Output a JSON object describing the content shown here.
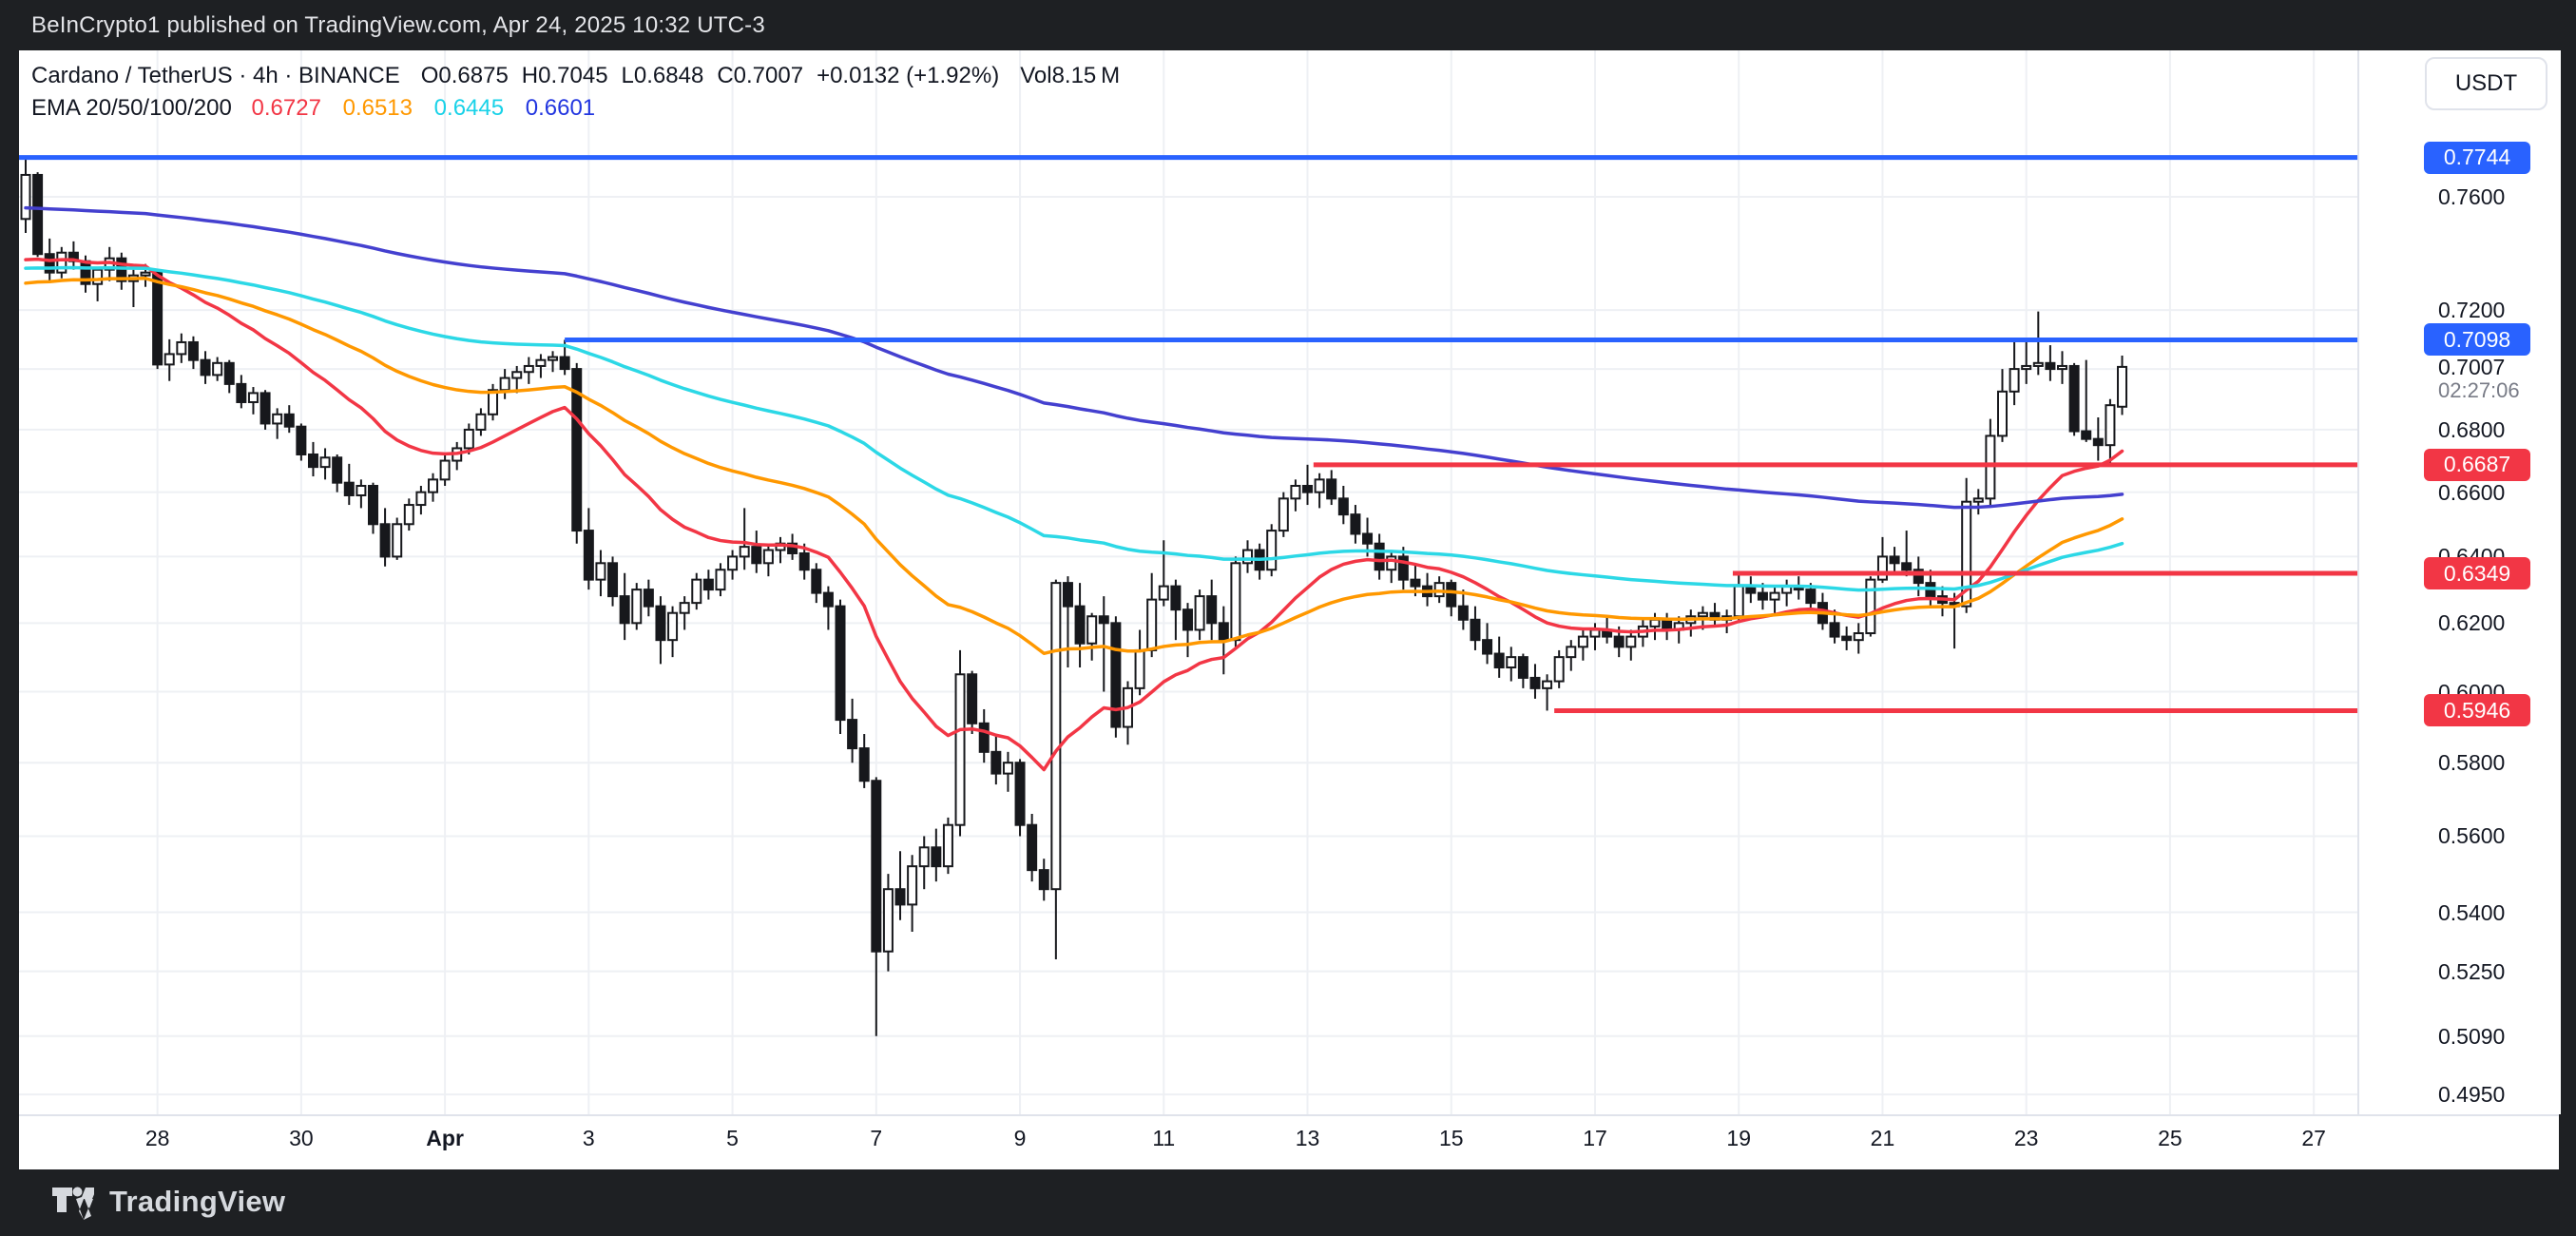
{
  "top_bar": {
    "text": "BeInCrypto1 published on TradingView.com, Apr 24, 2025 10:32 UTC-3"
  },
  "footer": {
    "brand": "TradingView"
  },
  "header": {
    "symbol": "Cardano / TetherUS · 4h · BINANCE",
    "open": "O0.6875",
    "high": "H0.7045",
    "low": "L0.6848",
    "close": "C0.7007",
    "change": "+0.0132 (+1.92%)",
    "volume": "Vol8.15 M",
    "ema_label": "EMA 20/50/100/200"
  },
  "price_axis": {
    "currency_button": "USDT",
    "labels": [
      {
        "text": "0.7600",
        "price": 0.76
      },
      {
        "text": "0.7200",
        "price": 0.72
      },
      {
        "text": "0.6800",
        "price": 0.68
      },
      {
        "text": "0.6600",
        "price": 0.66
      },
      {
        "text": "0.6400",
        "price": 0.64
      },
      {
        "text": "0.6200",
        "price": 0.62
      },
      {
        "text": "0.6000",
        "price": 0.6
      },
      {
        "text": "0.5800",
        "price": 0.58
      },
      {
        "text": "0.5600",
        "price": 0.56
      },
      {
        "text": "0.5400",
        "price": 0.54
      },
      {
        "text": "0.5250",
        "price": 0.525
      },
      {
        "text": "0.5090",
        "price": 0.509
      },
      {
        "text": "0.4950",
        "price": 0.495
      }
    ],
    "special": [
      {
        "text": "0.7744",
        "price": 0.7744,
        "bg": "#2962FF"
      },
      {
        "text": "0.7098",
        "price": 0.7098,
        "bg": "#2962FF"
      },
      {
        "text": "0.6687",
        "price": 0.6687,
        "bg": "#F23645"
      },
      {
        "text": "0.6349",
        "price": 0.6349,
        "bg": "#F23645"
      },
      {
        "text": "0.5946",
        "price": 0.5946,
        "bg": "#F23645"
      }
    ],
    "current": {
      "text": "0.7007",
      "price": 0.7007
    },
    "countdown": "02:27:06"
  },
  "time_axis": {
    "labels": [
      {
        "text": "28",
        "idx": 11
      },
      {
        "text": "30",
        "idx": 23
      },
      {
        "text": "Apr",
        "idx": 35,
        "bold": true
      },
      {
        "text": "3",
        "idx": 47
      },
      {
        "text": "5",
        "idx": 59
      },
      {
        "text": "7",
        "idx": 71
      },
      {
        "text": "9",
        "idx": 83
      },
      {
        "text": "11",
        "idx": 95
      },
      {
        "text": "13",
        "idx": 107
      },
      {
        "text": "15",
        "idx": 119
      },
      {
        "text": "17",
        "idx": 131
      },
      {
        "text": "19",
        "idx": 143
      },
      {
        "text": "21",
        "idx": 155
      },
      {
        "text": "23",
        "idx": 167
      },
      {
        "text": "25",
        "idx": 179
      },
      {
        "text": "27",
        "idx": 191
      }
    ]
  },
  "chart_data": {
    "type": "candlestick",
    "title": "Cardano / TetherUS 4h BINANCE",
    "scale": "log",
    "grid": true,
    "grid_prices": [
      0.76,
      0.72,
      0.7,
      0.68,
      0.66,
      0.64,
      0.62,
      0.6,
      0.58,
      0.56,
      0.54,
      0.525,
      0.509,
      0.495
    ],
    "ylim": [
      0.488,
      0.79
    ],
    "candle_colors": {
      "up_fill": "#FFFFFF",
      "down_fill": "#17181C",
      "border": "#17181C"
    },
    "emas": [
      {
        "period": 20,
        "color": "#F23645",
        "value_text": "0.6727",
        "seed": 0.7375
      },
      {
        "period": 50,
        "color": "#FF9800",
        "value_text": "0.6513",
        "seed": 0.7293
      },
      {
        "period": 100,
        "color": "#2CD8E6",
        "value_text": "0.6445",
        "seed": 0.7345
      },
      {
        "period": 200,
        "color": "#4440CF",
        "value_text": "0.6601",
        "seed": 0.756
      }
    ],
    "rays": [
      {
        "price": 0.7744,
        "color": "#2962FF",
        "from_idx": -1
      },
      {
        "price": 0.7098,
        "color": "#2962FF",
        "from_idx": 45
      },
      {
        "price": 0.6687,
        "color": "#F23645",
        "from_idx": 107.5
      },
      {
        "price": 0.6349,
        "color": "#F23645",
        "from_idx": 142.5
      },
      {
        "price": 0.5946,
        "color": "#F23645",
        "from_idx": 127.6
      }
    ],
    "candles": [
      [
        0.752,
        0.7744,
        0.747,
        0.768
      ],
      [
        0.768,
        0.769,
        0.7385,
        0.7395
      ],
      [
        0.7395,
        0.745,
        0.73,
        0.733
      ],
      [
        0.733,
        0.742,
        0.731,
        0.74
      ],
      [
        0.74,
        0.744,
        0.734,
        0.737
      ],
      [
        0.737,
        0.739,
        0.726,
        0.729
      ],
      [
        0.729,
        0.735,
        0.723,
        0.734
      ],
      [
        0.734,
        0.742,
        0.73,
        0.738
      ],
      [
        0.738,
        0.74,
        0.727,
        0.73
      ],
      [
        0.73,
        0.734,
        0.721,
        0.732
      ],
      [
        0.732,
        0.736,
        0.728,
        0.733
      ],
      [
        0.733,
        0.734,
        0.7,
        0.7015
      ],
      [
        0.7015,
        0.71,
        0.696,
        0.705
      ],
      [
        0.705,
        0.712,
        0.702,
        0.709
      ],
      [
        0.709,
        0.711,
        0.7,
        0.703
      ],
      [
        0.703,
        0.706,
        0.695,
        0.698
      ],
      [
        0.698,
        0.704,
        0.696,
        0.702
      ],
      [
        0.702,
        0.703,
        0.692,
        0.695
      ],
      [
        0.695,
        0.698,
        0.687,
        0.689
      ],
      [
        0.689,
        0.694,
        0.685,
        0.692
      ],
      [
        0.692,
        0.693,
        0.68,
        0.682
      ],
      [
        0.682,
        0.687,
        0.677,
        0.685
      ],
      [
        0.685,
        0.688,
        0.679,
        0.681
      ],
      [
        0.681,
        0.682,
        0.67,
        0.672
      ],
      [
        0.672,
        0.676,
        0.665,
        0.668
      ],
      [
        0.668,
        0.674,
        0.664,
        0.671
      ],
      [
        0.671,
        0.672,
        0.66,
        0.663
      ],
      [
        0.663,
        0.669,
        0.656,
        0.659
      ],
      [
        0.659,
        0.664,
        0.655,
        0.662
      ],
      [
        0.662,
        0.663,
        0.647,
        0.65
      ],
      [
        0.65,
        0.655,
        0.637,
        0.64
      ],
      [
        0.64,
        0.652,
        0.639,
        0.65
      ],
      [
        0.65,
        0.658,
        0.648,
        0.656
      ],
      [
        0.656,
        0.662,
        0.653,
        0.66
      ],
      [
        0.66,
        0.666,
        0.657,
        0.664
      ],
      [
        0.664,
        0.672,
        0.662,
        0.67
      ],
      [
        0.67,
        0.676,
        0.667,
        0.674
      ],
      [
        0.674,
        0.682,
        0.672,
        0.68
      ],
      [
        0.68,
        0.687,
        0.678,
        0.685
      ],
      [
        0.685,
        0.695,
        0.683,
        0.693
      ],
      [
        0.693,
        0.7,
        0.69,
        0.697
      ],
      [
        0.697,
        0.701,
        0.692,
        0.699
      ],
      [
        0.699,
        0.704,
        0.695,
        0.701
      ],
      [
        0.701,
        0.705,
        0.697,
        0.703
      ],
      [
        0.703,
        0.706,
        0.699,
        0.704
      ],
      [
        0.704,
        0.7098,
        0.698,
        0.7
      ],
      [
        0.7,
        0.702,
        0.644,
        0.648
      ],
      [
        0.648,
        0.655,
        0.63,
        0.633
      ],
      [
        0.633,
        0.642,
        0.628,
        0.638
      ],
      [
        0.638,
        0.64,
        0.625,
        0.628
      ],
      [
        0.628,
        0.635,
        0.615,
        0.62
      ],
      [
        0.62,
        0.632,
        0.618,
        0.63
      ],
      [
        0.63,
        0.633,
        0.622,
        0.625
      ],
      [
        0.625,
        0.628,
        0.608,
        0.615
      ],
      [
        0.615,
        0.625,
        0.61,
        0.623
      ],
      [
        0.623,
        0.628,
        0.618,
        0.626
      ],
      [
        0.626,
        0.635,
        0.624,
        0.633
      ],
      [
        0.633,
        0.636,
        0.627,
        0.63
      ],
      [
        0.63,
        0.638,
        0.628,
        0.636
      ],
      [
        0.636,
        0.642,
        0.633,
        0.64
      ],
      [
        0.64,
        0.655,
        0.636,
        0.643
      ],
      [
        0.643,
        0.648,
        0.635,
        0.638
      ],
      [
        0.638,
        0.644,
        0.634,
        0.642
      ],
      [
        0.642,
        0.646,
        0.638,
        0.644
      ],
      [
        0.644,
        0.647,
        0.639,
        0.641
      ],
      [
        0.641,
        0.644,
        0.633,
        0.636
      ],
      [
        0.636,
        0.638,
        0.626,
        0.629
      ],
      [
        0.629,
        0.631,
        0.618,
        0.625
      ],
      [
        0.625,
        0.627,
        0.588,
        0.592
      ],
      [
        0.592,
        0.598,
        0.58,
        0.584
      ],
      [
        0.584,
        0.588,
        0.573,
        0.575
      ],
      [
        0.575,
        0.576,
        0.509,
        0.53
      ],
      [
        0.53,
        0.55,
        0.525,
        0.546
      ],
      [
        0.546,
        0.556,
        0.538,
        0.542
      ],
      [
        0.542,
        0.555,
        0.535,
        0.552
      ],
      [
        0.552,
        0.56,
        0.546,
        0.557
      ],
      [
        0.557,
        0.562,
        0.548,
        0.552
      ],
      [
        0.552,
        0.565,
        0.55,
        0.563
      ],
      [
        0.563,
        0.612,
        0.56,
        0.605
      ],
      [
        0.605,
        0.606,
        0.588,
        0.591
      ],
      [
        0.591,
        0.595,
        0.58,
        0.583
      ],
      [
        0.583,
        0.588,
        0.574,
        0.577
      ],
      [
        0.577,
        0.583,
        0.572,
        0.58
      ],
      [
        0.58,
        0.581,
        0.56,
        0.563
      ],
      [
        0.563,
        0.566,
        0.548,
        0.551
      ],
      [
        0.551,
        0.554,
        0.543,
        0.546
      ],
      [
        0.546,
        0.633,
        0.528,
        0.632
      ],
      [
        0.632,
        0.634,
        0.607,
        0.625
      ],
      [
        0.625,
        0.632,
        0.607,
        0.614
      ],
      [
        0.614,
        0.623,
        0.609,
        0.622
      ],
      [
        0.622,
        0.628,
        0.6,
        0.62
      ],
      [
        0.62,
        0.622,
        0.587,
        0.59
      ],
      [
        0.59,
        0.603,
        0.585,
        0.601
      ],
      [
        0.601,
        0.618,
        0.599,
        0.612
      ],
      [
        0.612,
        0.635,
        0.61,
        0.627
      ],
      [
        0.627,
        0.645,
        0.625,
        0.631
      ],
      [
        0.631,
        0.633,
        0.615,
        0.624
      ],
      [
        0.624,
        0.626,
        0.61,
        0.618
      ],
      [
        0.618,
        0.63,
        0.615,
        0.628
      ],
      [
        0.628,
        0.633,
        0.615,
        0.62
      ],
      [
        0.62,
        0.625,
        0.605,
        0.615
      ],
      [
        0.615,
        0.64,
        0.613,
        0.638
      ],
      [
        0.638,
        0.645,
        0.635,
        0.642
      ],
      [
        0.642,
        0.644,
        0.633,
        0.636
      ],
      [
        0.636,
        0.65,
        0.634,
        0.648
      ],
      [
        0.648,
        0.66,
        0.646,
        0.658
      ],
      [
        0.658,
        0.664,
        0.654,
        0.662
      ],
      [
        0.662,
        0.6687,
        0.656,
        0.66
      ],
      [
        0.66,
        0.666,
        0.655,
        0.664
      ],
      [
        0.664,
        0.667,
        0.656,
        0.658
      ],
      [
        0.658,
        0.662,
        0.65,
        0.653
      ],
      [
        0.653,
        0.656,
        0.644,
        0.647
      ],
      [
        0.647,
        0.652,
        0.64,
        0.644
      ],
      [
        0.644,
        0.647,
        0.633,
        0.636
      ],
      [
        0.636,
        0.642,
        0.632,
        0.64
      ],
      [
        0.64,
        0.643,
        0.63,
        0.633
      ],
      [
        0.633,
        0.638,
        0.628,
        0.631
      ],
      [
        0.631,
        0.635,
        0.625,
        0.628
      ],
      [
        0.628,
        0.634,
        0.626,
        0.632
      ],
      [
        0.632,
        0.633,
        0.622,
        0.625
      ],
      [
        0.625,
        0.63,
        0.618,
        0.621
      ],
      [
        0.621,
        0.625,
        0.612,
        0.615
      ],
      [
        0.615,
        0.62,
        0.608,
        0.611
      ],
      [
        0.611,
        0.616,
        0.604,
        0.607
      ],
      [
        0.607,
        0.613,
        0.603,
        0.61
      ],
      [
        0.61,
        0.611,
        0.601,
        0.604
      ],
      [
        0.604,
        0.608,
        0.598,
        0.601
      ],
      [
        0.601,
        0.605,
        0.5946,
        0.603
      ],
      [
        0.603,
        0.612,
        0.601,
        0.61
      ],
      [
        0.61,
        0.615,
        0.606,
        0.613
      ],
      [
        0.613,
        0.618,
        0.609,
        0.616
      ],
      [
        0.616,
        0.62,
        0.612,
        0.618
      ],
      [
        0.618,
        0.622,
        0.614,
        0.616
      ],
      [
        0.616,
        0.619,
        0.61,
        0.613
      ],
      [
        0.613,
        0.618,
        0.609,
        0.616
      ],
      [
        0.616,
        0.621,
        0.613,
        0.619
      ],
      [
        0.619,
        0.623,
        0.615,
        0.621
      ],
      [
        0.621,
        0.623,
        0.615,
        0.618
      ],
      [
        0.618,
        0.622,
        0.614,
        0.62
      ],
      [
        0.62,
        0.624,
        0.616,
        0.622
      ],
      [
        0.622,
        0.625,
        0.618,
        0.623
      ],
      [
        0.623,
        0.626,
        0.619,
        0.621
      ],
      [
        0.621,
        0.624,
        0.617,
        0.622
      ],
      [
        0.622,
        0.6349,
        0.62,
        0.631
      ],
      [
        0.631,
        0.634,
        0.626,
        0.629
      ],
      [
        0.629,
        0.632,
        0.624,
        0.627
      ],
      [
        0.627,
        0.631,
        0.623,
        0.629
      ],
      [
        0.629,
        0.633,
        0.625,
        0.631
      ],
      [
        0.631,
        0.634,
        0.627,
        0.63
      ],
      [
        0.63,
        0.632,
        0.624,
        0.626
      ],
      [
        0.626,
        0.629,
        0.618,
        0.62
      ],
      [
        0.62,
        0.624,
        0.614,
        0.616
      ],
      [
        0.616,
        0.619,
        0.612,
        0.615
      ],
      [
        0.615,
        0.62,
        0.611,
        0.617
      ],
      [
        0.617,
        0.634,
        0.616,
        0.633
      ],
      [
        0.633,
        0.646,
        0.632,
        0.64
      ],
      [
        0.64,
        0.643,
        0.635,
        0.638
      ],
      [
        0.638,
        0.648,
        0.634,
        0.636
      ],
      [
        0.636,
        0.64,
        0.628,
        0.632
      ],
      [
        0.632,
        0.636,
        0.625,
        0.628
      ],
      [
        0.628,
        0.631,
        0.622,
        0.626
      ],
      [
        0.626,
        0.629,
        0.6125,
        0.625
      ],
      [
        0.625,
        0.6645,
        0.623,
        0.657
      ],
      [
        0.657,
        0.661,
        0.653,
        0.658
      ],
      [
        0.658,
        0.6835,
        0.6555,
        0.678
      ],
      [
        0.678,
        0.7,
        0.676,
        0.6925
      ],
      [
        0.6925,
        0.7093,
        0.688,
        0.7
      ],
      [
        0.7,
        0.7093,
        0.695,
        0.701
      ],
      [
        0.701,
        0.7195,
        0.698,
        0.702
      ],
      [
        0.702,
        0.708,
        0.696,
        0.7
      ],
      [
        0.7,
        0.706,
        0.695,
        0.701
      ],
      [
        0.701,
        0.702,
        0.678,
        0.6795
      ],
      [
        0.6795,
        0.703,
        0.676,
        0.677
      ],
      [
        0.677,
        0.684,
        0.67,
        0.675
      ],
      [
        0.675,
        0.69,
        0.6687,
        0.688
      ],
      [
        0.6875,
        0.7045,
        0.6848,
        0.7007
      ]
    ]
  }
}
